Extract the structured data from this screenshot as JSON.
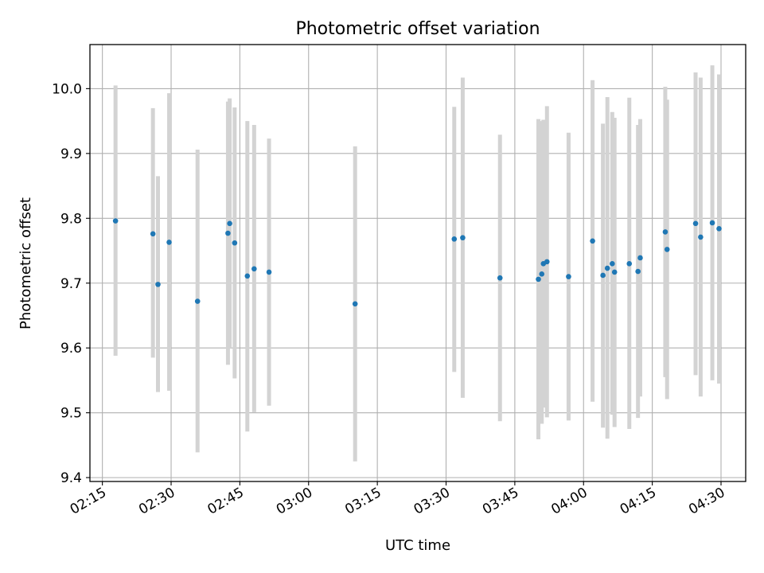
{
  "chart_data": {
    "type": "scatter",
    "title": "Photometric offset variation",
    "xlabel": "UTC time",
    "ylabel": "Photometric offset",
    "xlim": [
      "02:12:17",
      "04:35:23"
    ],
    "ylim": [
      9.394,
      10.068
    ],
    "x_ticks": [
      "02:15",
      "02:30",
      "02:45",
      "03:00",
      "03:15",
      "03:30",
      "03:45",
      "04:00",
      "04:15",
      "04:30"
    ],
    "y_ticks": [
      "9.4",
      "9.5",
      "9.6",
      "9.7",
      "9.8",
      "9.9",
      "10.0"
    ],
    "grid": true,
    "point_color": "#1f77b4",
    "errorbar_color": "#d3d3d3",
    "points": [
      {
        "x": "02:17:52",
        "y": 9.796,
        "low": 9.588,
        "high": 10.005
      },
      {
        "x": "02:26:02",
        "y": 9.776,
        "low": 9.585,
        "high": 9.97
      },
      {
        "x": "02:27:08",
        "y": 9.698,
        "low": 9.532,
        "high": 9.865
      },
      {
        "x": "02:29:34",
        "y": 9.763,
        "low": 9.534,
        "high": 9.993
      },
      {
        "x": "02:35:46",
        "y": 9.672,
        "low": 9.439,
        "high": 9.906
      },
      {
        "x": "02:42:24",
        "y": 9.777,
        "low": 9.574,
        "high": 9.98
      },
      {
        "x": "02:42:47",
        "y": 9.792,
        "low": 9.6,
        "high": 9.985
      },
      {
        "x": "02:43:52",
        "y": 9.762,
        "low": 9.553,
        "high": 9.971
      },
      {
        "x": "02:46:38",
        "y": 9.711,
        "low": 9.471,
        "high": 9.95
      },
      {
        "x": "02:48:07",
        "y": 9.722,
        "low": 9.501,
        "high": 9.944
      },
      {
        "x": "02:51:22",
        "y": 9.717,
        "low": 9.511,
        "high": 9.923
      },
      {
        "x": "03:10:09",
        "y": 9.668,
        "low": 9.425,
        "high": 9.911
      },
      {
        "x": "03:31:47",
        "y": 9.768,
        "low": 9.563,
        "high": 9.972
      },
      {
        "x": "03:33:38",
        "y": 9.77,
        "low": 9.523,
        "high": 10.017
      },
      {
        "x": "03:41:46",
        "y": 9.708,
        "low": 9.487,
        "high": 9.929
      },
      {
        "x": "03:50:09",
        "y": 9.706,
        "low": 9.459,
        "high": 9.953
      },
      {
        "x": "03:50:53",
        "y": 9.714,
        "low": 9.483,
        "high": 9.95
      },
      {
        "x": "03:51:14",
        "y": 9.73,
        "low": 9.508,
        "high": 9.952
      },
      {
        "x": "03:52:01",
        "y": 9.733,
        "low": 9.493,
        "high": 9.973
      },
      {
        "x": "03:56:44",
        "y": 9.71,
        "low": 9.488,
        "high": 9.932
      },
      {
        "x": "04:01:58",
        "y": 9.765,
        "low": 9.517,
        "high": 10.013
      },
      {
        "x": "04:04:14",
        "y": 9.712,
        "low": 9.477,
        "high": 9.946
      },
      {
        "x": "04:05:12",
        "y": 9.723,
        "low": 9.46,
        "high": 9.987
      },
      {
        "x": "04:06:16",
        "y": 9.73,
        "low": 9.497,
        "high": 9.964
      },
      {
        "x": "04:06:46",
        "y": 9.717,
        "low": 9.478,
        "high": 9.955
      },
      {
        "x": "04:09:59",
        "y": 9.73,
        "low": 9.475,
        "high": 9.986
      },
      {
        "x": "04:11:53",
        "y": 9.718,
        "low": 9.492,
        "high": 9.944
      },
      {
        "x": "04:12:22",
        "y": 9.739,
        "low": 9.525,
        "high": 9.953
      },
      {
        "x": "04:17:50",
        "y": 9.779,
        "low": 9.555,
        "high": 10.003
      },
      {
        "x": "04:18:14",
        "y": 9.752,
        "low": 9.521,
        "high": 9.983
      },
      {
        "x": "04:24:27",
        "y": 9.792,
        "low": 9.558,
        "high": 10.025
      },
      {
        "x": "04:25:33",
        "y": 9.771,
        "low": 9.525,
        "high": 10.017
      },
      {
        "x": "04:28:06",
        "y": 9.793,
        "low": 9.55,
        "high": 10.036
      },
      {
        "x": "04:29:34",
        "y": 9.784,
        "low": 9.545,
        "high": 10.022
      }
    ]
  }
}
